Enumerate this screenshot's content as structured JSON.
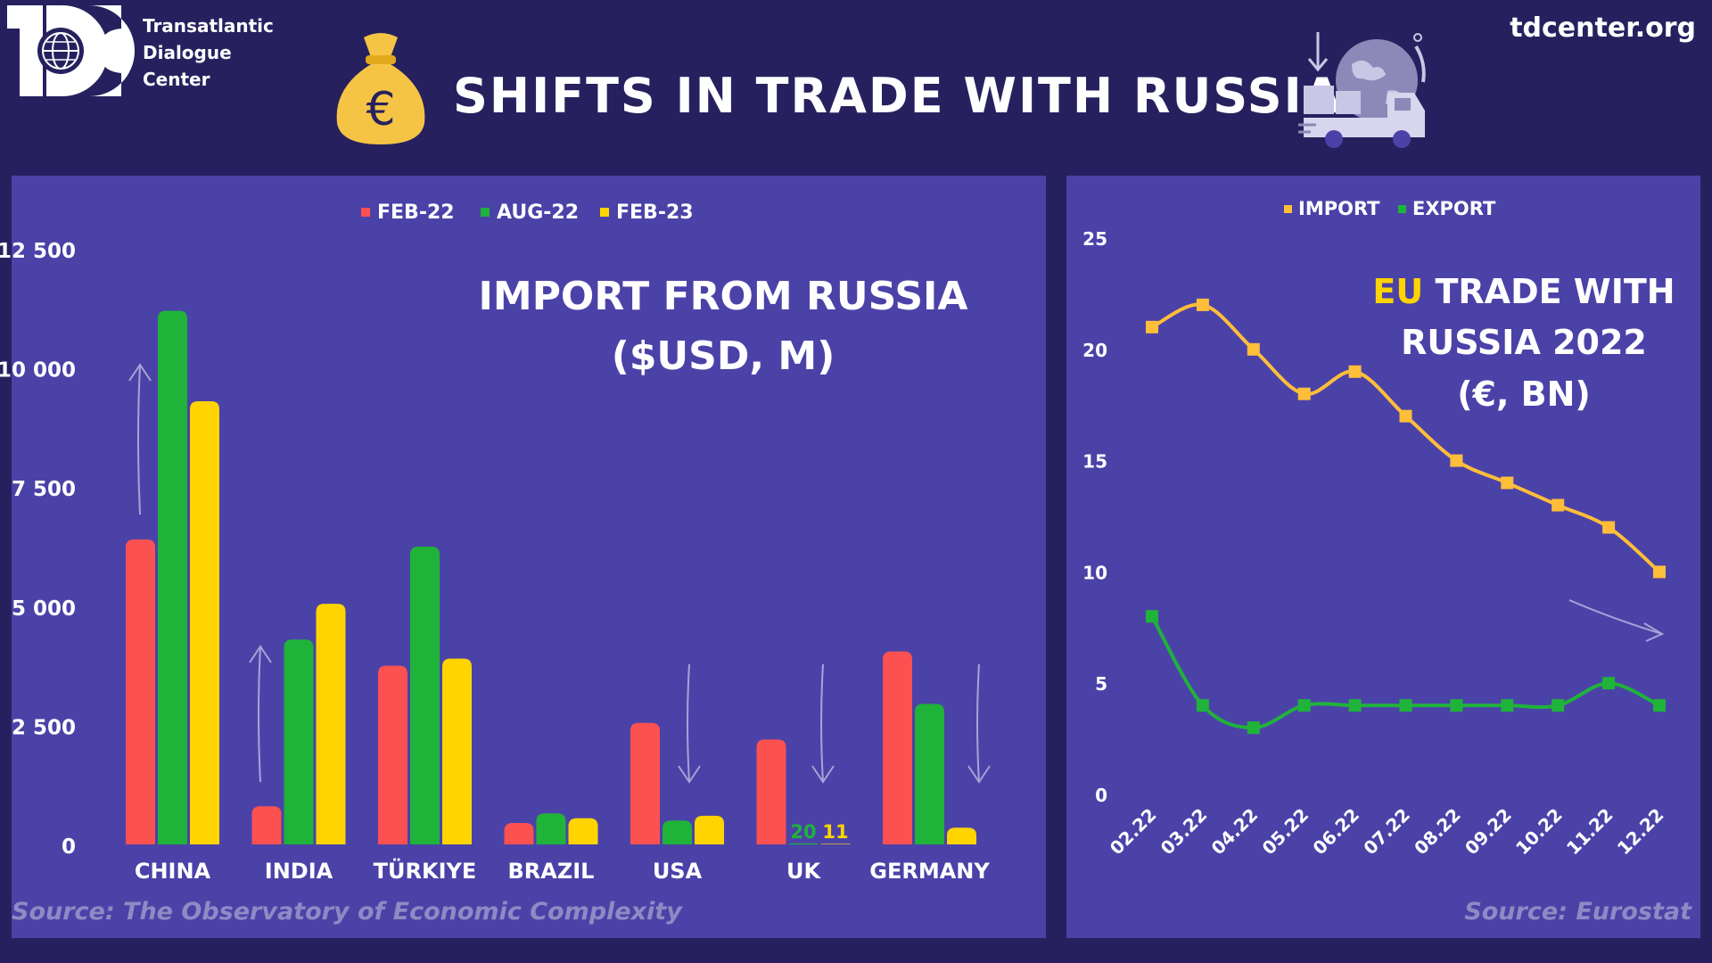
{
  "header": {
    "org_name_lines": [
      "Transatlantic",
      "Dialogue",
      "Center"
    ],
    "title": "SHIFTS IN TRADE WITH RUSSIA",
    "site": "tdcenter.org",
    "bag_symbol": "€"
  },
  "icons": [
    "tdc-logo",
    "money-bag-icon",
    "globe-truck-icon"
  ],
  "colors": {
    "background": "#26215e",
    "panel": "#4b42a8",
    "feb22": "#fb5151",
    "aug22": "#1fb33a",
    "feb23": "#ffd400",
    "import": "#ffbe3a",
    "export": "#1fb33a",
    "eu_accent": "#ffd400"
  },
  "left": {
    "source": "Source: The Observatory of Economic Complexity"
  },
  "right": {
    "source": "Source: Eurostat"
  },
  "chart_data": [
    {
      "type": "bar",
      "title": "IMPORT FROM RUSSIA",
      "subtitle": "($USD, M)",
      "categories": [
        "CHINA",
        "INDIA",
        "TÜRKIYE",
        "BRAZIL",
        "USA",
        "UK",
        "GERMANY"
      ],
      "series": [
        {
          "name": "FEB-22",
          "values": [
            6400,
            800,
            3750,
            450,
            2550,
            2200,
            4050
          ]
        },
        {
          "name": "AUG-22",
          "values": [
            11200,
            4300,
            6250,
            650,
            500,
            20,
            2950
          ]
        },
        {
          "name": "FEB-23",
          "values": [
            9300,
            5050,
            3900,
            550,
            600,
            11,
            350
          ]
        }
      ],
      "data_labels": [
        {
          "category": "UK",
          "series": "AUG-22",
          "text": "20"
        },
        {
          "category": "UK",
          "series": "FEB-23",
          "text": "11"
        }
      ],
      "ylim": [
        0,
        12500
      ],
      "yticks": [
        "0",
        "2 500",
        "5 000",
        "7 500",
        "10 000",
        "12 500"
      ],
      "legend": "top-center",
      "grid": false
    },
    {
      "type": "line",
      "title_parts": [
        "EU",
        "TRADE WITH",
        "RUSSIA 2022"
      ],
      "subtitle": "(€, BN)",
      "x": [
        "02.22",
        "03.22",
        "04.22",
        "05.22",
        "06.22",
        "07.22",
        "08.22",
        "09.22",
        "10.22",
        "11.22",
        "12.22"
      ],
      "series": [
        {
          "name": "IMPORT",
          "values": [
            21,
            22,
            20,
            18,
            19,
            17,
            15,
            14,
            13,
            12,
            10
          ]
        },
        {
          "name": "EXPORT",
          "values": [
            8,
            4,
            3,
            4,
            4,
            4,
            4,
            4,
            4,
            5,
            4
          ]
        }
      ],
      "ylim": [
        0,
        25
      ],
      "yticks": [
        "0",
        "5",
        "10",
        "15",
        "20",
        "25"
      ],
      "legend": "top-center",
      "grid": false
    }
  ]
}
